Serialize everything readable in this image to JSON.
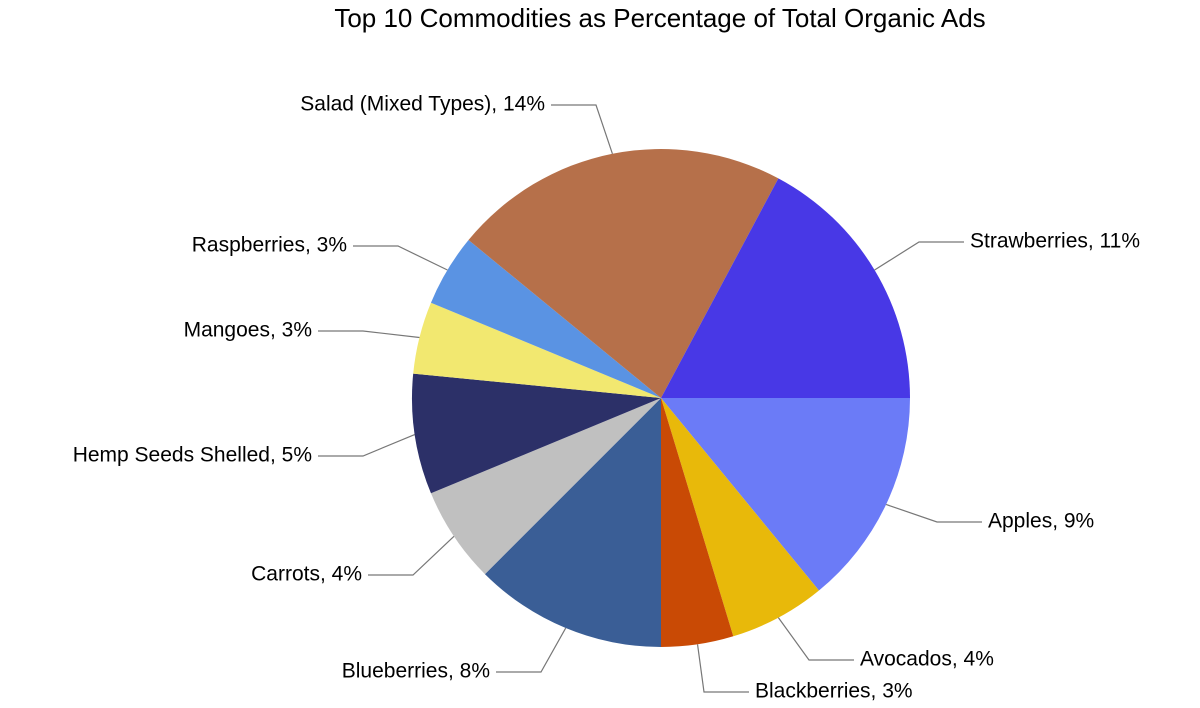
{
  "chart_data": {
    "type": "pie",
    "title": "Top 10 Commodities as Percentage of Total Organic Ads",
    "values": [
      9,
      4,
      3,
      8,
      4,
      5,
      3,
      3,
      14,
      11
    ],
    "value_labels": [
      "Apples, 9%",
      "Avocados, 4%",
      "Blackberries, 3%",
      "Blueberries, 8%",
      "Carrots, 4%",
      "Hemp Seeds Shelled, 5%",
      "Mangoes, 3%",
      "Raspberries, 3%",
      "Salad (Mixed Types), 14%",
      "Strawberries, 11%"
    ],
    "colors": [
      "#6b7bf7",
      "#e8b90a",
      "#c94a05",
      "#3a5e96",
      "#c0c0c0",
      "#2c3068",
      "#f2e870",
      "#5a93e3",
      "#b6704a",
      "#4838e6"
    ]
  }
}
